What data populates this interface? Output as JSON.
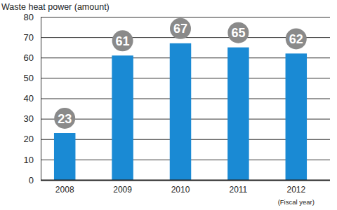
{
  "chart_data": {
    "type": "bar",
    "title": "Waste heat power (amount)",
    "x_label": "(Fiscal year)",
    "categories": [
      "2008",
      "2009",
      "2010",
      "2011",
      "2012"
    ],
    "values": [
      23,
      61,
      67,
      65,
      62
    ],
    "color": "#1a8ad4",
    "ylim": [
      0,
      80
    ],
    "yticks": [
      0,
      10,
      20,
      30,
      40,
      50,
      60,
      70,
      80
    ],
    "grid": true,
    "data_labels": true
  }
}
